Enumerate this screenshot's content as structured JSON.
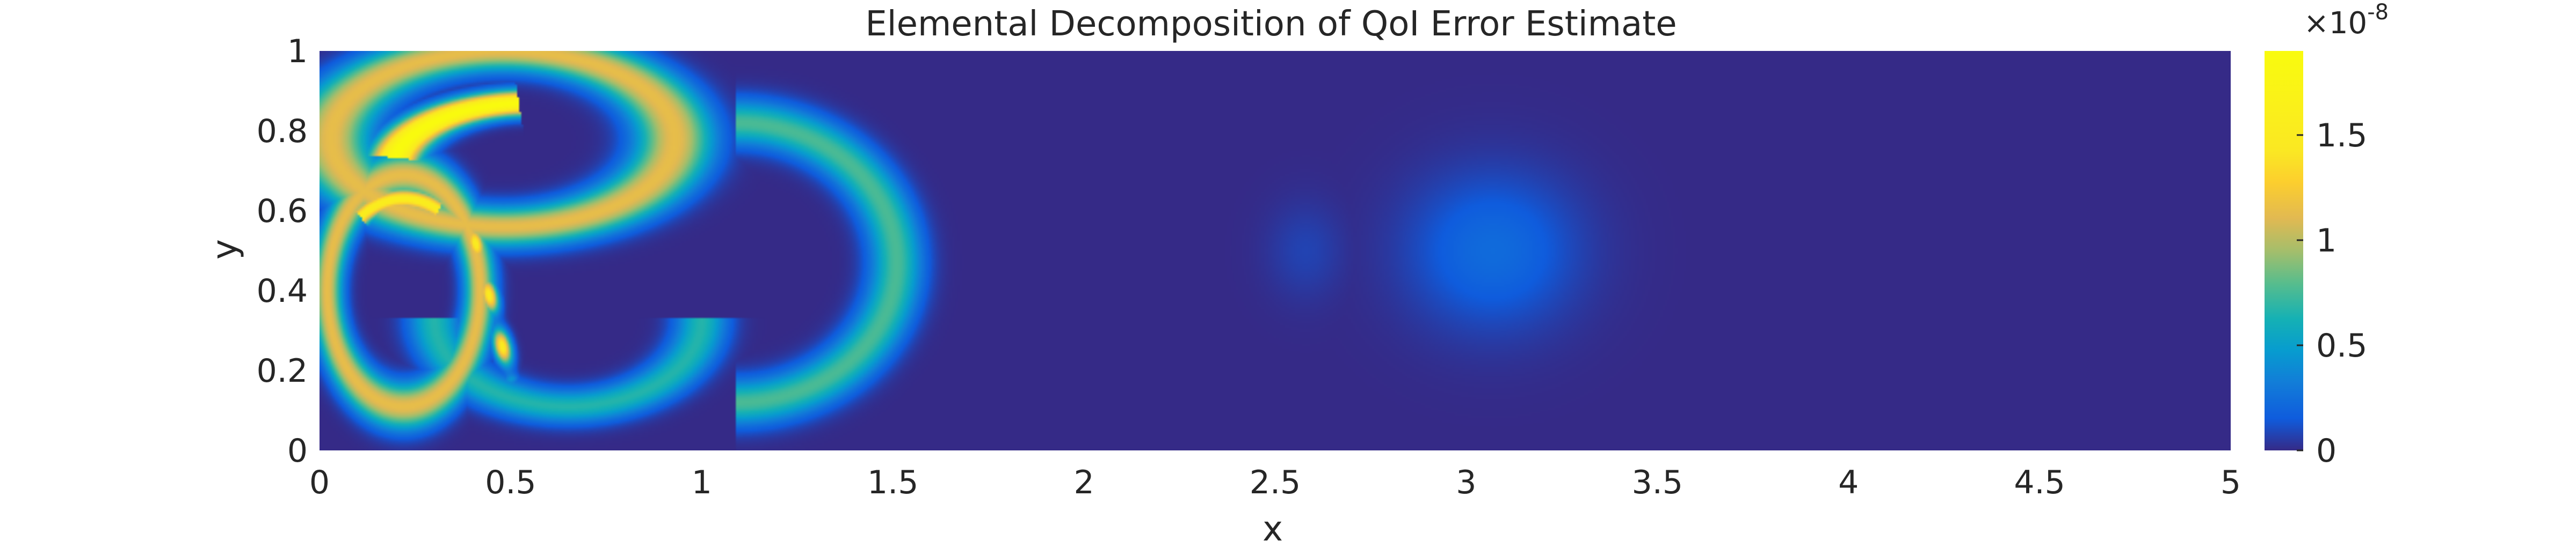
{
  "chart_data": {
    "type": "heatmap",
    "title": "Elemental Decomposition of QoI Error Estimate",
    "xlabel": "x",
    "ylabel": "y",
    "xlim": [
      0,
      5
    ],
    "ylim": [
      0,
      1
    ],
    "xticks": [
      0,
      0.5,
      1,
      1.5,
      2,
      2.5,
      3,
      3.5,
      4,
      4.5,
      5
    ],
    "xtick_labels": [
      "0",
      "0.5",
      "1",
      "1.5",
      "2",
      "2.5",
      "3",
      "3.5",
      "4",
      "4.5",
      "5"
    ],
    "yticks": [
      0,
      0.2,
      0.4,
      0.6,
      0.8,
      1
    ],
    "ytick_labels": [
      "0",
      "0.2",
      "0.4",
      "0.6",
      "0.8",
      "1"
    ],
    "colorbar": {
      "colormap": "parula",
      "range": [
        0,
        1.9e-08
      ],
      "ticks": [
        0,
        0.5,
        1,
        1.5
      ],
      "tick_labels": [
        "0",
        "0.5",
        "1",
        "1.5"
      ],
      "scale_base": "×10",
      "scale_exponent": "-8"
    },
    "features": [
      {
        "shape": "ring",
        "cx": 0.48,
        "cy": 0.78,
        "rx": 0.45,
        "ry": 0.22,
        "thickness": 0.035,
        "amplitude": 0.6
      },
      {
        "shape": "arc",
        "cx": 0.55,
        "cy": 0.7,
        "rx": 0.36,
        "ry": 0.17,
        "theta0": 1.65,
        "theta1": 2.95,
        "thickness": 0.022,
        "amplitude": 1.0
      },
      {
        "shape": "ring",
        "cx": 0.22,
        "cy": 0.4,
        "rx": 0.2,
        "ry": 0.29,
        "thickness": 0.028,
        "amplitude": 0.6
      },
      {
        "shape": "arc",
        "cx": 0.22,
        "cy": 0.45,
        "rx": 0.17,
        "ry": 0.18,
        "theta0": 1.0,
        "theta1": 2.3,
        "thickness": 0.018,
        "amplitude": 0.82
      },
      {
        "shape": "line",
        "x0": 0.4,
        "y0": 0.55,
        "x1": 0.5,
        "y1": 0.18,
        "thickness": 0.016,
        "amplitude": 0.8
      },
      {
        "shape": "ring",
        "cx": 1.09,
        "cy": 0.47,
        "rx": 0.42,
        "ry": 0.35,
        "thickness": 0.04,
        "amplitude": 0.4,
        "theta0": -1.57,
        "theta1": 1.57
      },
      {
        "shape": "ring",
        "cx": 0.65,
        "cy": 0.33,
        "rx": 0.35,
        "ry": 0.22,
        "thickness": 0.03,
        "amplitude": 0.35,
        "theta0": -3.14,
        "theta1": 0.0
      },
      {
        "shape": "blob",
        "cx": 3.07,
        "cy": 0.5,
        "rx": 0.32,
        "ry": 0.28,
        "amplitude": 0.12
      },
      {
        "shape": "blob",
        "cx": 2.58,
        "cy": 0.5,
        "rx": 0.15,
        "ry": 0.18,
        "amplitude": 0.04
      }
    ]
  }
}
